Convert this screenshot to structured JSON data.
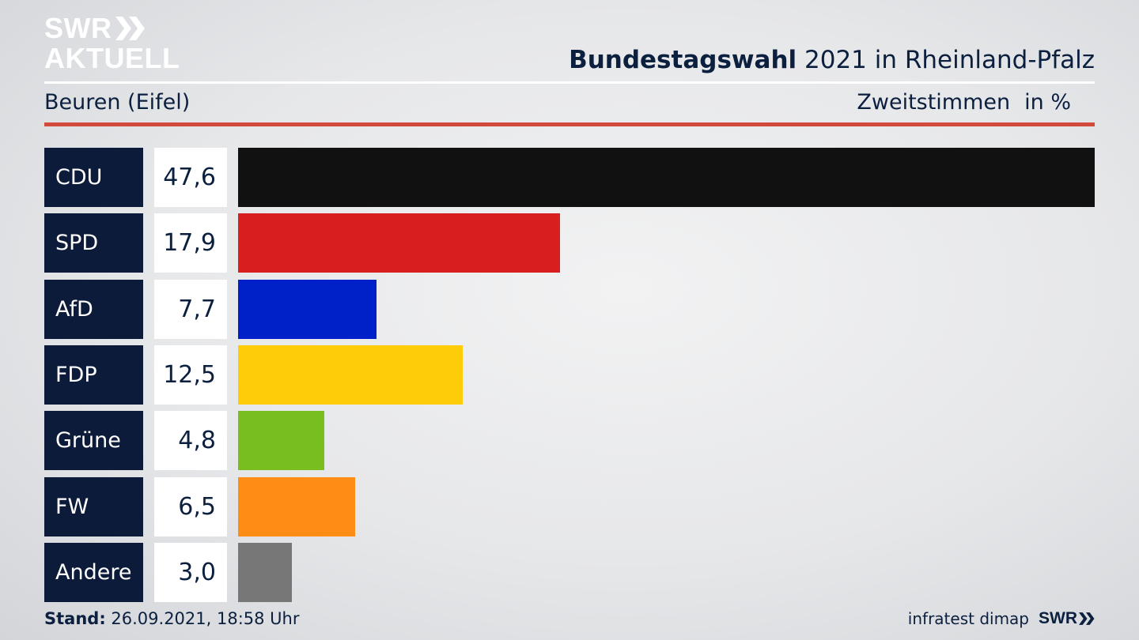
{
  "logo": {
    "line1": "SWR",
    "line2": "AKTUELL"
  },
  "header": {
    "title_bold": "Bundestagswahl",
    "title_rest": " 2021 in Rheinland-Pfalz"
  },
  "subheader": {
    "region": "Beuren (Eifel)",
    "measure": "Zweitstimmen",
    "unit": "in %"
  },
  "footer": {
    "stand_label": "Stand:",
    "stand_value": " 26.09.2021, 18:58 Uhr",
    "source": "infratest dimap",
    "brand": "SWR"
  },
  "colors": {
    "navy": "#0d1b3a",
    "accent_red": "#d24a3c"
  },
  "chart_data": {
    "type": "bar",
    "orientation": "horizontal",
    "categories": [
      "CDU",
      "SPD",
      "AfD",
      "FDP",
      "Grüne",
      "FW",
      "Andere"
    ],
    "values": [
      47.6,
      17.9,
      7.7,
      12.5,
      4.8,
      6.5,
      3.0
    ],
    "value_labels": [
      "47,6",
      "17,9",
      "7,7",
      "12,5",
      "4,8",
      "6,5",
      "3,0"
    ],
    "colors": [
      "#111111",
      "#d81e1e",
      "#0021c8",
      "#ffcc0a",
      "#78be1e",
      "#ff8c14",
      "#777777"
    ],
    "xlim": [
      0,
      47.6
    ],
    "unit": "in %"
  }
}
